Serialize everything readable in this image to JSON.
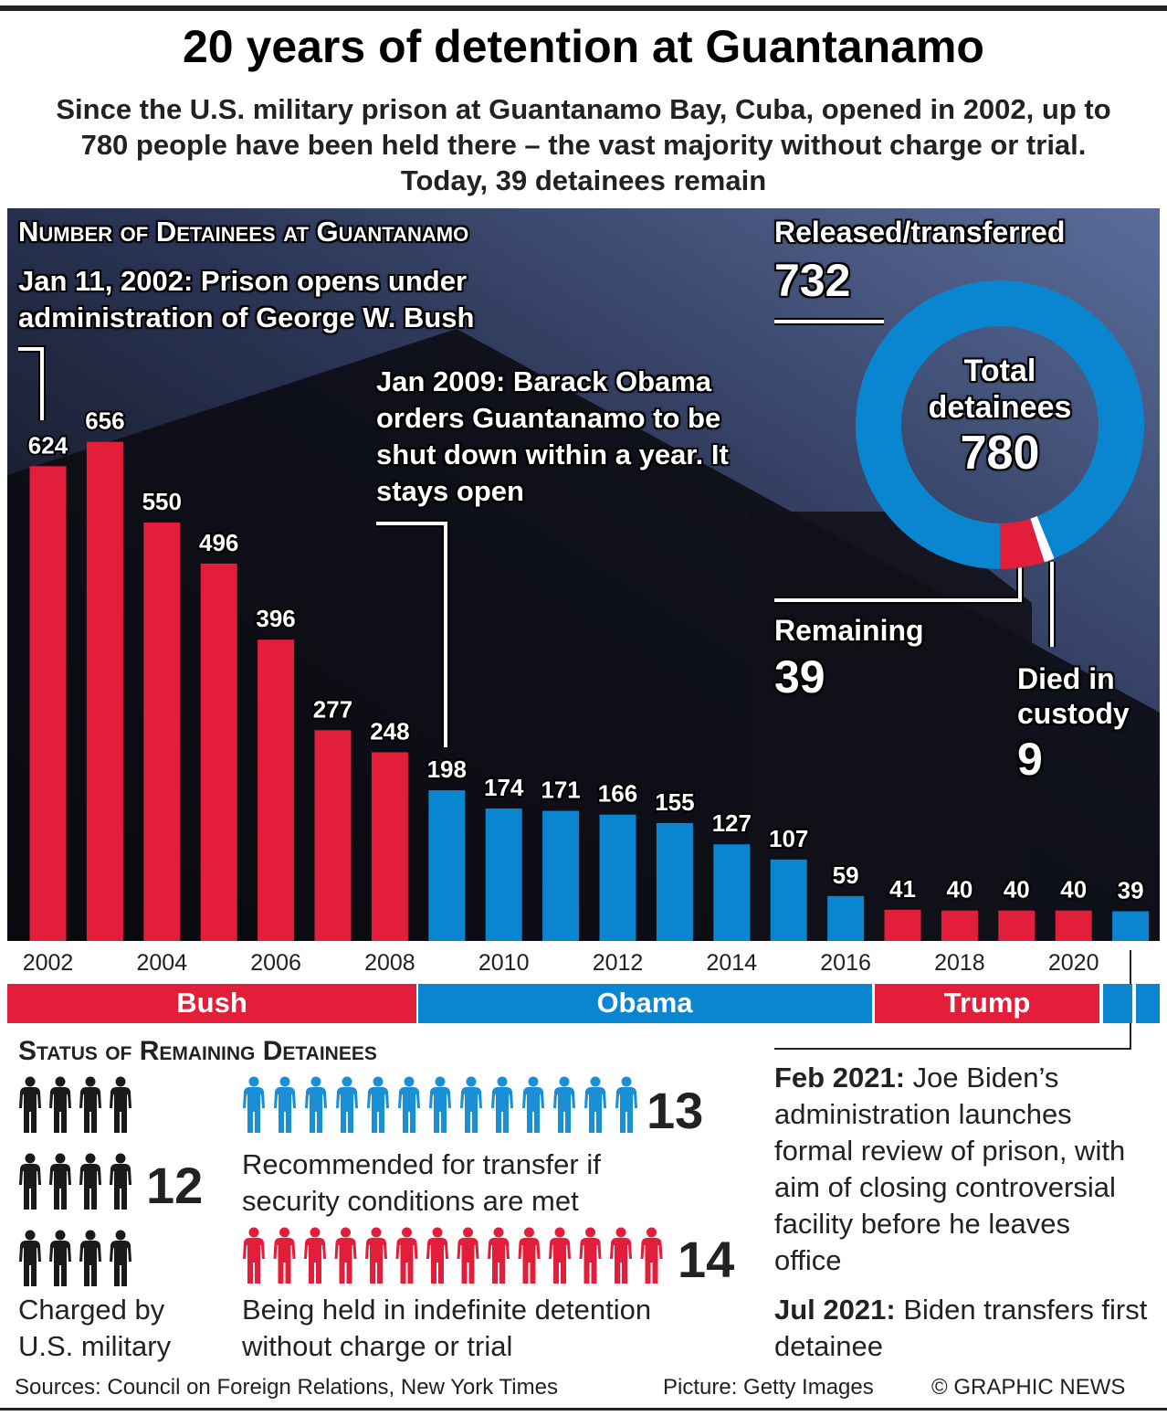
{
  "header": {
    "title": "20 years of detention at Guantanamo",
    "subtitle": "Since the U.S. military prison at Guantanamo Bay, Cuba, opened in 2002, up to 780 people have been held there – the vast majority without charge or trial. Today, 39 detainees remain"
  },
  "chart_data": [
    {
      "type": "bar",
      "title": "Number of Detainees at Guantanamo",
      "categories": [
        "2002",
        null,
        "2004",
        null,
        "2006",
        null,
        "2008",
        null,
        "2010",
        null,
        "2012",
        null,
        "2014",
        null,
        "2016",
        null,
        "2018",
        null,
        "2020",
        null
      ],
      "values": [
        624,
        656,
        550,
        496,
        396,
        277,
        248,
        198,
        174,
        171,
        166,
        155,
        127,
        107,
        59,
        41,
        40,
        40,
        40,
        39
      ],
      "colors": [
        "#e31e3a",
        "#e31e3a",
        "#e31e3a",
        "#e31e3a",
        "#e31e3a",
        "#e31e3a",
        "#e31e3a",
        "#0a86d0",
        "#0a86d0",
        "#0a86d0",
        "#0a86d0",
        "#0a86d0",
        "#0a86d0",
        "#0a86d0",
        "#0a86d0",
        "#e31e3a",
        "#e31e3a",
        "#e31e3a",
        "#e31e3a",
        "#0a86d0"
      ],
      "ylim": [
        0,
        700
      ],
      "annotations": [
        "Jan 11, 2002: Prison opens under administration of George W. Bush",
        "Jan 2009: Barack Obama orders Guantanamo to be shut down within a year. It stays open"
      ],
      "administrations": [
        {
          "name": "Bush",
          "color": "#e31e3a"
        },
        {
          "name": "Obama",
          "color": "#0a86d0"
        },
        {
          "name": "Trump",
          "color": "#e31e3a"
        }
      ]
    },
    {
      "type": "donut",
      "title": "Total detainees",
      "total": 780,
      "categories": [
        "Released/transferred",
        "Remaining",
        "Died in custody"
      ],
      "values": [
        732,
        39,
        9
      ],
      "colors": [
        "#0a86d0",
        "#e31e3a",
        "#ffffff"
      ]
    },
    {
      "type": "pictogram",
      "title": "Status of Remaining Detainees",
      "categories": [
        "Charged by U.S. military",
        "Recommended for transfer if security conditions are met",
        "Being held in indefinite detention without charge or trial"
      ],
      "values": [
        12,
        13,
        14
      ],
      "colors": [
        "#1a1a1a",
        "#1a8fd6",
        "#e31e3a"
      ]
    }
  ],
  "notes": [
    {
      "date": "Feb 2021:",
      "text": "Joe Biden’s administration launches formal review of prison, with aim of closing controversial facility before he leaves office"
    },
    {
      "date": "Jul 2021:",
      "text": "Biden transfers first detainee"
    }
  ],
  "footer": {
    "sources": "Sources: Council on Foreign Relations, New York Times",
    "picture": "Picture: Getty Images",
    "credit": "© GRAPHIC NEWS"
  }
}
